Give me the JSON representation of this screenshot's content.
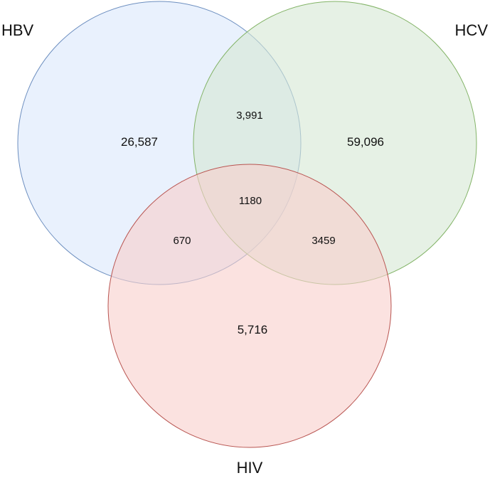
{
  "sets": {
    "hbv": {
      "label": "HBV",
      "fill": "#dae8fc",
      "stroke": "#6c8ebf"
    },
    "hcv": {
      "label": "HCV",
      "fill": "#d5e8d4",
      "stroke": "#82b366"
    },
    "hiv": {
      "label": "HIV",
      "fill": "#f8cecc",
      "stroke": "#b85450"
    }
  },
  "regions": {
    "hbv_only": "26,587",
    "hcv_only": "59,096",
    "hiv_only": "5,716",
    "hbv_hcv": "3,991",
    "hbv_hiv": "670",
    "hcv_hiv": "3459",
    "all_three": "1180"
  }
}
